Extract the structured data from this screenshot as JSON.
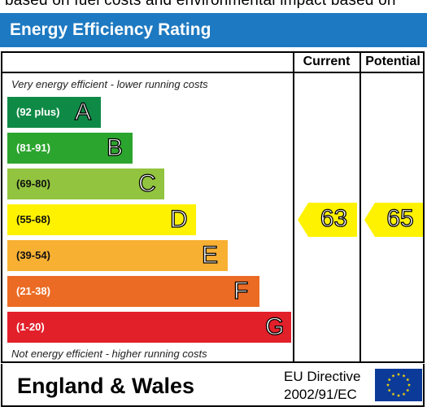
{
  "intro_text": "based on fuel costs and environmental impact based on",
  "header": {
    "title": "Energy Efficiency Rating"
  },
  "columns": {
    "current": "Current",
    "potential": "Potential"
  },
  "notes": {
    "top": "Very energy efficient - lower running costs",
    "bottom": "Not energy efficient - higher running costs"
  },
  "chart_data": {
    "type": "bar",
    "bands": [
      {
        "range": "(92 plus)",
        "letter": "A",
        "color": "#0f8a46"
      },
      {
        "range": "(81-91)",
        "letter": "B",
        "color": "#2ca52f"
      },
      {
        "range": "(69-80)",
        "letter": "C",
        "color": "#92c43f"
      },
      {
        "range": "(55-68)",
        "letter": "D",
        "color": "#fff200"
      },
      {
        "range": "(39-54)",
        "letter": "E",
        "color": "#f8b033"
      },
      {
        "range": "(21-38)",
        "letter": "F",
        "color": "#ec6b24"
      },
      {
        "range": "(1-20)",
        "letter": "G",
        "color": "#e2202a"
      }
    ],
    "current": {
      "value": "63",
      "band": "D"
    },
    "potential": {
      "value": "65",
      "band": "D"
    }
  },
  "footer": {
    "region": "England & Wales",
    "directive_line1": "EU Directive",
    "directive_line2": "2002/91/EC"
  }
}
